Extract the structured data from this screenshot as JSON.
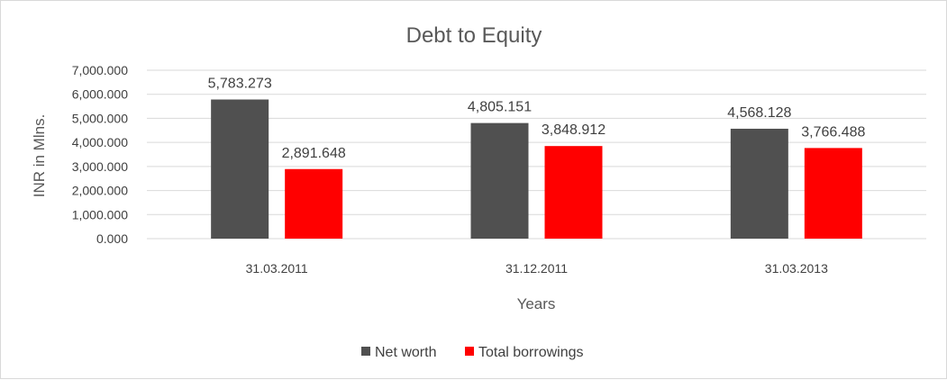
{
  "chart_data": {
    "type": "bar",
    "title": "Debt to Equity",
    "xlabel": "Years",
    "ylabel": "INR in Mlns.",
    "categories": [
      "31.03.2011",
      "31.12.2011",
      "31.03.2013"
    ],
    "series": [
      {
        "name": "Net worth",
        "color": "#505050",
        "values": [
          5783.273,
          4805.151,
          4568.128
        ],
        "labels": [
          "5,783.273",
          "4,805.151",
          "4,568.128"
        ]
      },
      {
        "name": "Total borrowings",
        "color": "#ff0000",
        "values": [
          2891.648,
          3848.912,
          3766.488
        ],
        "labels": [
          "2,891.648",
          "3,848.912",
          "3,766.488"
        ]
      }
    ],
    "ylim": [
      0,
      7000
    ],
    "yticks": [
      0,
      1000,
      2000,
      3000,
      4000,
      5000,
      6000,
      7000
    ],
    "ytick_labels": [
      "0.000",
      "1,000.000",
      "2,000.000",
      "3,000.000",
      "4,000.000",
      "5,000.000",
      "6,000.000",
      "7,000.000"
    ],
    "grid": true,
    "gridline_color": "#d9d9d9",
    "legend_position": "bottom"
  }
}
